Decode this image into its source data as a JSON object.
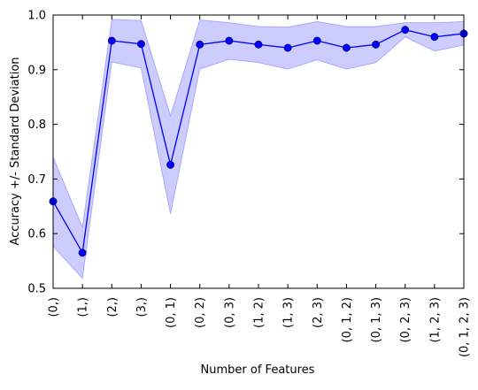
{
  "chart_data": {
    "type": "line",
    "title": "",
    "xlabel": "Number of Features",
    "ylabel": "Accuracy +/- Standard Deviation",
    "categories": [
      "(0,)",
      "(1,)",
      "(2,)",
      "(3,)",
      "(0, 1)",
      "(0, 2)",
      "(0, 3)",
      "(1, 2)",
      "(1, 3)",
      "(2, 3)",
      "(0, 1, 2)",
      "(0, 1, 3)",
      "(0, 2, 3)",
      "(1, 2, 3)",
      "(0, 1, 2, 3)"
    ],
    "values": [
      0.659,
      0.565,
      0.953,
      0.947,
      0.726,
      0.946,
      0.953,
      0.946,
      0.94,
      0.953,
      0.94,
      0.946,
      0.973,
      0.96,
      0.966
    ],
    "upper": [
      0.74,
      0.612,
      0.992,
      0.99,
      0.816,
      0.991,
      0.986,
      0.979,
      0.978,
      0.988,
      0.979,
      0.979,
      0.986,
      0.986,
      0.988
    ],
    "lower": [
      0.577,
      0.518,
      0.914,
      0.903,
      0.636,
      0.901,
      0.919,
      0.913,
      0.901,
      0.918,
      0.901,
      0.913,
      0.96,
      0.934,
      0.945
    ],
    "ylim": [
      0.5,
      1.0
    ],
    "yticks": [
      0.5,
      0.6,
      0.7,
      0.8,
      0.9,
      1.0
    ],
    "ytick_labels": [
      "0.5",
      "0.6",
      "0.7",
      "0.8",
      "0.9",
      "1.0"
    ],
    "grid": false,
    "legend": "none",
    "line_color": "#0000ff",
    "band_color": "#0000ff",
    "band_opacity": 0.2
  }
}
